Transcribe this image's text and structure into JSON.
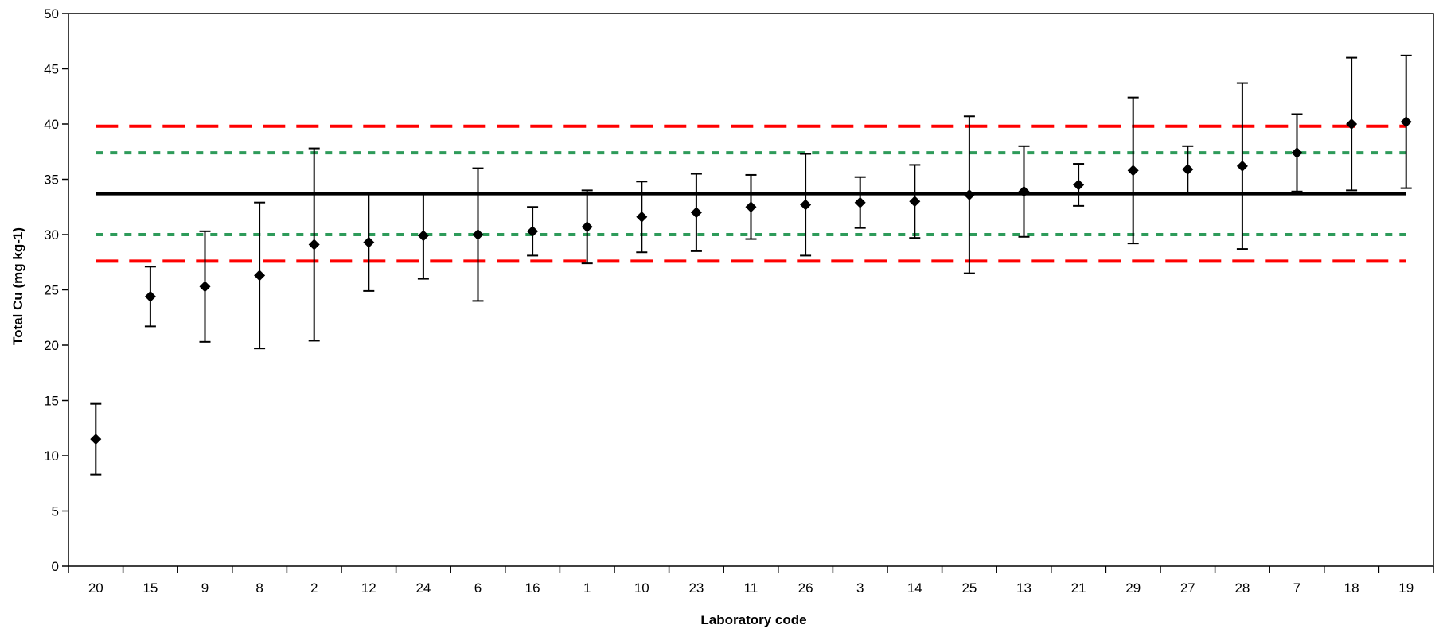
{
  "chart_data": {
    "type": "scatter",
    "title": "",
    "xlabel": "Laboratory code",
    "ylabel": "Total Cu (mg kg-1)",
    "ylim": [
      0,
      50
    ],
    "y_ticks": [
      0,
      5,
      10,
      15,
      20,
      25,
      30,
      35,
      40,
      45,
      50
    ],
    "grid": false,
    "legend": "none",
    "categories": [
      "20",
      "15",
      "9",
      "8",
      "2",
      "12",
      "24",
      "6",
      "16",
      "1",
      "10",
      "23",
      "11",
      "26",
      "3",
      "14",
      "25",
      "13",
      "21",
      "29",
      "27",
      "28",
      "7",
      "18",
      "19"
    ],
    "values": [
      11.5,
      24.4,
      25.3,
      26.3,
      29.1,
      29.3,
      29.9,
      30.0,
      30.3,
      30.7,
      31.6,
      32.0,
      32.5,
      32.7,
      32.9,
      33.0,
      33.6,
      33.9,
      34.5,
      35.8,
      35.9,
      36.2,
      37.4,
      40.0,
      40.2
    ],
    "error_low": [
      8.3,
      21.7,
      20.3,
      19.7,
      20.4,
      24.9,
      26.0,
      24.0,
      28.1,
      27.4,
      28.4,
      28.5,
      29.6,
      28.1,
      30.6,
      29.7,
      26.5,
      29.8,
      32.6,
      29.2,
      33.8,
      28.7,
      33.9,
      34.0,
      34.2
    ],
    "error_high": [
      14.7,
      27.1,
      30.3,
      32.9,
      37.8,
      33.7,
      33.8,
      36.0,
      32.5,
      34.0,
      34.8,
      35.5,
      35.4,
      37.3,
      35.2,
      36.3,
      40.7,
      38.0,
      36.4,
      42.4,
      38.0,
      43.7,
      40.9,
      46.0,
      46.2
    ],
    "reference_lines": [
      {
        "style": "solid",
        "color": "#000000",
        "value": 33.7
      },
      {
        "style": "dotted",
        "color": "#2e9b5a",
        "value": 37.4
      },
      {
        "style": "dotted",
        "color": "#2e9b5a",
        "value": 30.0
      },
      {
        "style": "dashed",
        "color": "#ff0000",
        "value": 39.8
      },
      {
        "style": "dashed",
        "color": "#ff0000",
        "value": 27.6
      }
    ],
    "marker_color": "#000000"
  }
}
